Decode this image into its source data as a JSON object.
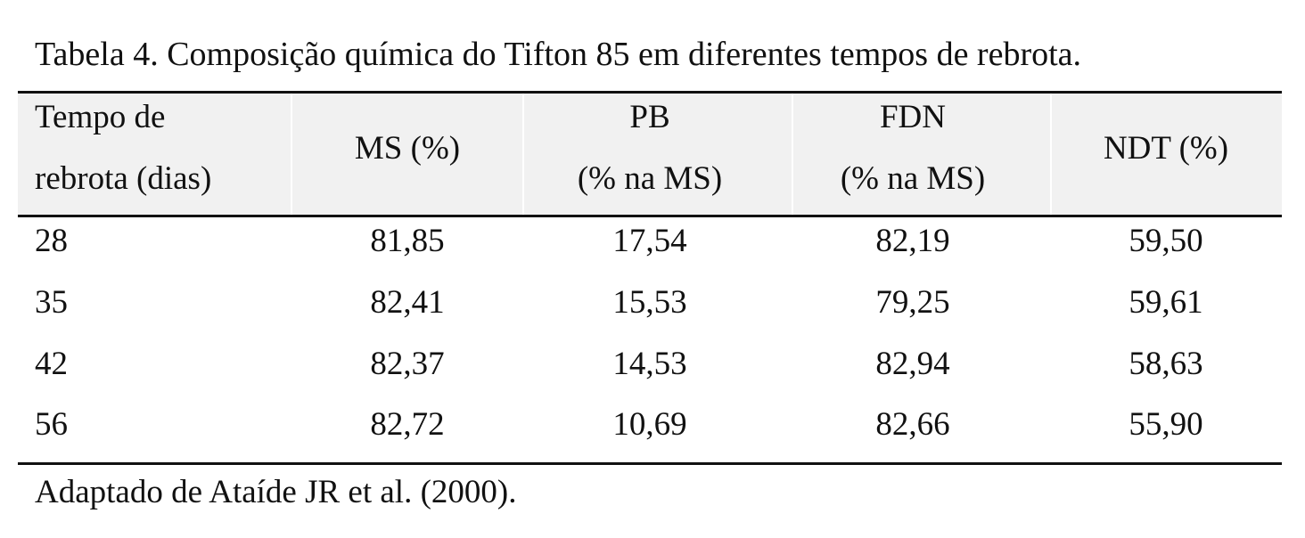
{
  "caption": "Tabela 4. Composição química do Tifton 85 em diferentes tempos de rebrota.",
  "headers": {
    "tempo_line1": "Tempo de",
    "tempo_line2": "rebrota (dias)",
    "ms": "MS (%)",
    "pb_line1": "PB",
    "pb_line2": "(% na MS)",
    "fdn_line1": "FDN",
    "fdn_line2": "(% na MS)",
    "ndt": "NDT (%)"
  },
  "rows": [
    {
      "tempo": "28",
      "ms": "81,85",
      "pb": "17,54",
      "fdn": "82,19",
      "ndt": "59,50"
    },
    {
      "tempo": "35",
      "ms": "82,41",
      "pb": "15,53",
      "fdn": "79,25",
      "ndt": "59,61"
    },
    {
      "tempo": "42",
      "ms": "82,37",
      "pb": "14,53",
      "fdn": "82,94",
      "ndt": "58,63"
    },
    {
      "tempo": "56",
      "ms": "82,72",
      "pb": "10,69",
      "fdn": "82,66",
      "ndt": "55,90"
    }
  ],
  "note": "Adaptado de Ataíde JR et al. (2000)."
}
